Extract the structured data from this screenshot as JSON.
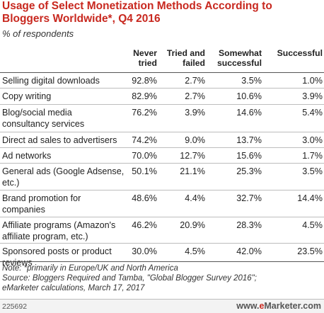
{
  "title": "Usage of Select Monetization Methods According to Bloggers Worldwide*, Q4 2016",
  "subtitle": "% of respondents",
  "chart_data": {
    "type": "table",
    "columns": [
      "Never tried",
      "Tried and failed",
      "Somewhat successful",
      "Successful"
    ],
    "column_lines": [
      [
        "Never",
        "tried"
      ],
      [
        "Tried and",
        "failed"
      ],
      [
        "Somewhat",
        "successful"
      ],
      [
        "Successful"
      ]
    ],
    "rows": [
      {
        "label_lines": [
          "Selling digital downloads"
        ],
        "label": "Selling digital downloads",
        "values": [
          "92.8%",
          "2.7%",
          "3.5%",
          "1.0%"
        ]
      },
      {
        "label_lines": [
          "Copy writing"
        ],
        "label": "Copy writing",
        "values": [
          "82.9%",
          "2.7%",
          "10.6%",
          "3.9%"
        ]
      },
      {
        "label_lines": [
          "Blog/social media",
          "consultancy services"
        ],
        "label": "Blog/social media consultancy services",
        "values": [
          "76.2%",
          "3.9%",
          "14.6%",
          "5.4%"
        ]
      },
      {
        "label_lines": [
          "Direct ad sales to advertisers"
        ],
        "label": "Direct ad sales to advertisers",
        "values": [
          "74.2%",
          "9.0%",
          "13.7%",
          "3.0%"
        ]
      },
      {
        "label_lines": [
          "Ad networks"
        ],
        "label": "Ad networks",
        "values": [
          "70.0%",
          "12.7%",
          "15.6%",
          "1.7%"
        ]
      },
      {
        "label_lines": [
          "General ads (Google Adsense,",
          "etc.)"
        ],
        "label": "General ads (Google Adsense, etc.)",
        "values": [
          "50.1%",
          "21.1%",
          "25.3%",
          "3.5%"
        ]
      },
      {
        "label_lines": [
          "Brand promotion for",
          "companies"
        ],
        "label": "Brand promotion for companies",
        "values": [
          "48.6%",
          "4.4%",
          "32.7%",
          "14.4%"
        ]
      },
      {
        "label_lines": [
          "Affiliate programs (Amazon's",
          "affiliate program, etc.)"
        ],
        "label": "Affiliate programs (Amazon's affiliate program, etc.)",
        "values": [
          "46.2%",
          "20.9%",
          "28.3%",
          "4.5%"
        ]
      },
      {
        "label_lines": [
          "Sponsored posts or product",
          "reviews"
        ],
        "label": "Sponsored posts or product reviews",
        "values": [
          "30.0%",
          "4.5%",
          "42.0%",
          "23.5%"
        ]
      }
    ]
  },
  "note_lines": [
    "Note: *primarily in Europe/UK and North America",
    "Source: Bloggers Required and Tamba, \"Global Blogger Survey 2016\";",
    "eMarketer calculations, March 17, 2017"
  ],
  "footer": {
    "id": "225692",
    "brand_prefix": "www.",
    "brand_e": "e",
    "brand_suffix": "Marketer.com"
  },
  "colors": {
    "title": "#c8281f",
    "brand_accent": "#c8281f"
  }
}
